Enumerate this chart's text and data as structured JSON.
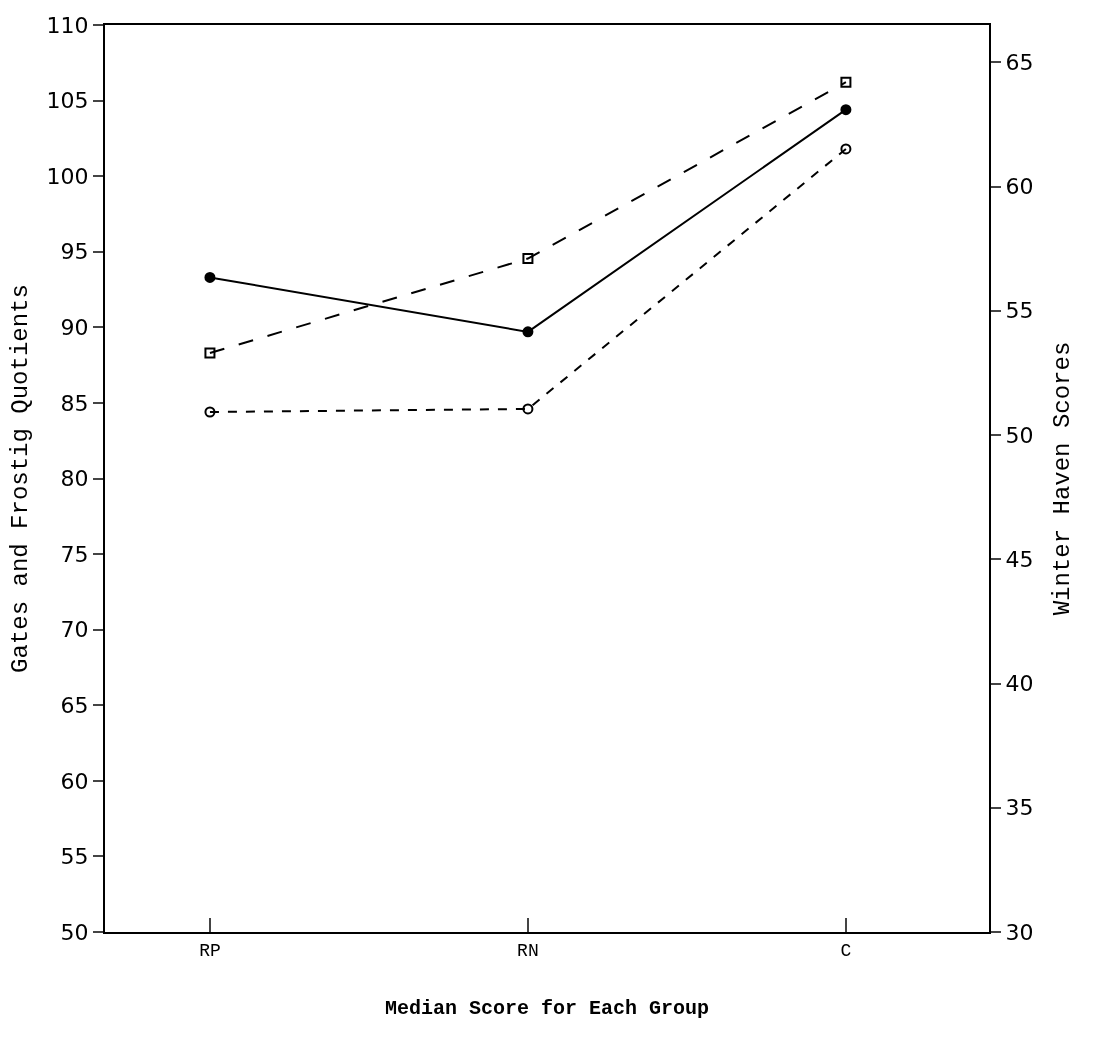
{
  "chart_data": {
    "type": "line",
    "xlabel": "Median Score for Each Group",
    "ylabel": "Gates and Frostig Quotients",
    "y2label": "Winter Haven Scores",
    "categories": [
      "RP",
      "RN",
      "C"
    ],
    "series": [
      {
        "color": "#000000",
        "values": [
          93.3,
          89.7,
          104.4
        ],
        "marker": "circle",
        "line_style": "solid"
      },
      {
        "color": "#000000",
        "values": [
          84.4,
          84.6,
          101.8
        ],
        "marker": "circle-open",
        "line_style": "dashed"
      },
      {
        "color": "#000000",
        "values": [
          53.3,
          57.1,
          64.2
        ],
        "marker": "square-open",
        "line_style": "longdash",
        "axis": "y2"
      }
    ],
    "ylim": [
      50,
      110
    ],
    "yticks": [
      50,
      55,
      60,
      65,
      70,
      75,
      80,
      85,
      90,
      95,
      100,
      105,
      110
    ],
    "y2lim": [
      30,
      66.5
    ],
    "y2ticks": [
      30,
      35,
      40,
      45,
      50,
      55,
      60,
      65
    ]
  }
}
